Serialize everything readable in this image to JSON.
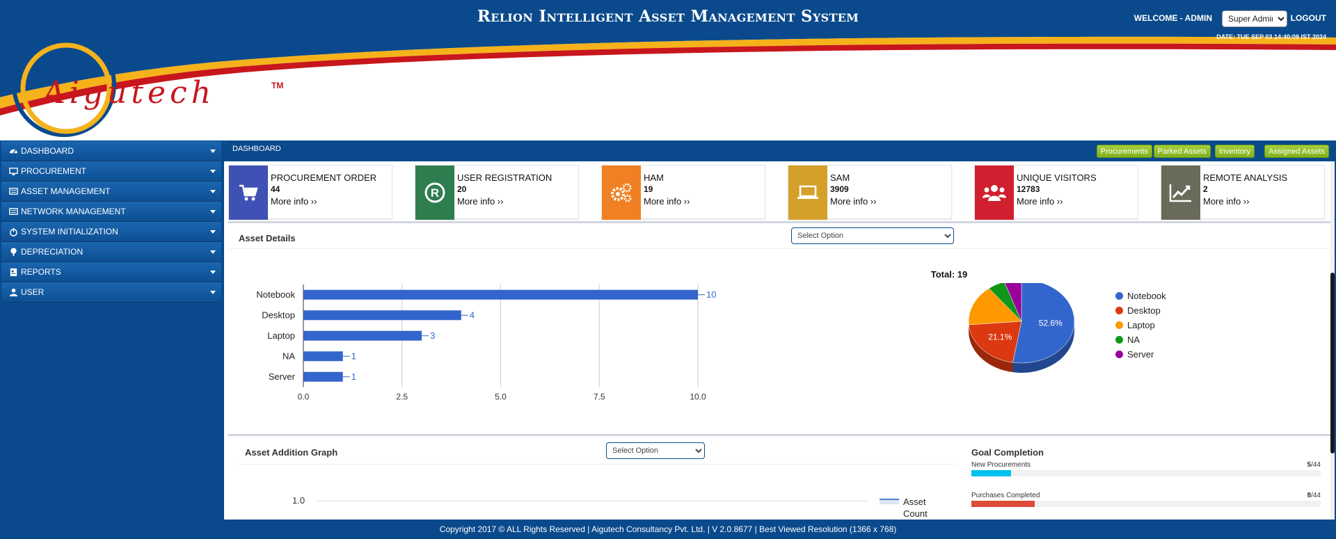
{
  "header": {
    "title": "Relion Intelligent Asset Management System",
    "welcome": "WELCOME - ADMIN",
    "role_selected": "Super Admin",
    "logout": "LOGOUT",
    "date": "DATE: TUE SEP 03 14:40:09 IST 2024",
    "logo_text": "Aigutech",
    "logo_tm": "TM"
  },
  "sidebar": {
    "items": [
      {
        "label": "DASHBOARD",
        "icon": "dashboard-icon"
      },
      {
        "label": "PROCUREMENT",
        "icon": "monitor-icon"
      },
      {
        "label": "ASSET MANAGEMENT",
        "icon": "server-icon"
      },
      {
        "label": "NETWORK MANAGEMENT",
        "icon": "network-icon"
      },
      {
        "label": "SYSTEM INITIALIZATION",
        "icon": "power-icon"
      },
      {
        "label": "DEPRECIATION",
        "icon": "tree-icon"
      },
      {
        "label": "REPORTS",
        "icon": "report-icon"
      },
      {
        "label": "USER",
        "icon": "user-icon"
      }
    ]
  },
  "main": {
    "breadcrumb": "DASHBOARD",
    "quick_links": [
      "Procurements",
      "Parked Assets",
      "Inventory",
      "Assigned Assets"
    ],
    "info_boxes": [
      {
        "label": "PROCUREMENT ORDER",
        "value": "44",
        "more": "More info ››",
        "color": "#3f51b5",
        "icon": "cart-icon"
      },
      {
        "label": "USER REGISTRATION",
        "value": "20",
        "more": "More info ››",
        "color": "#2e7d4f",
        "icon": "registered-icon"
      },
      {
        "label": "HAM",
        "value": "19",
        "more": "More info ››",
        "color": "#f08023",
        "icon": "gears-icon"
      },
      {
        "label": "SAM",
        "value": "3909",
        "more": "More info ››",
        "color": "#d4a02a",
        "icon": "laptop-icon"
      },
      {
        "label": "UNIQUE VISITORS",
        "value": "12783",
        "more": "More info ››",
        "color": "#d01f2e",
        "icon": "users-icon"
      },
      {
        "label": "REMOTE ANALYSIS",
        "value": "2",
        "more": "More info ››",
        "color": "#6a6a5a",
        "icon": "line-chart-icon"
      }
    ],
    "asset_details": {
      "title": "Asset Details",
      "select_placeholder": "Select Option",
      "pie_total": "Total: 19"
    },
    "asset_addition": {
      "title": "Asset Addition Graph",
      "select_placeholder": "Select Option",
      "y_tick": "1.0",
      "legend": "Asset Count"
    },
    "goal_completion": {
      "title": "Goal Completion",
      "items": [
        {
          "label": "New Procurements",
          "done": "5",
          "total": "/44",
          "fraction": 0.1136,
          "color": "#00c0ef"
        },
        {
          "label": "Purchases Completed",
          "done": "8",
          "total": "/44",
          "fraction": 0.1818,
          "color": "#dd4b39"
        }
      ]
    }
  },
  "chart_data": [
    {
      "type": "bar",
      "orientation": "horizontal",
      "categories": [
        "Notebook",
        "Desktop",
        "Laptop",
        "NA",
        "Server"
      ],
      "values": [
        10,
        4,
        3,
        1,
        1
      ],
      "xlim": [
        0,
        10
      ],
      "x_ticks": [
        "0.0",
        "2.5",
        "5.0",
        "7.5",
        "10.0"
      ],
      "grid": true,
      "color": "#3366cc"
    },
    {
      "type": "pie",
      "title": "Total: 19",
      "labels": [
        "Notebook",
        "Desktop",
        "Laptop",
        "NA",
        "Server"
      ],
      "values": [
        10,
        4,
        3,
        1,
        1
      ],
      "slice_labels": [
        "52.6%",
        "21.1%",
        "",
        "",
        ""
      ],
      "colors": [
        "#3366cc",
        "#dc3912",
        "#ff9900",
        "#109618",
        "#990099"
      ],
      "legend": "right"
    }
  ],
  "footer": {
    "text": "Copyright 2017 © ALL Rights Reserved | Aigutech Consultancy Pvt. Ltd. | V 2.0.8677 | Best Viewed Resolution (1366 x 768)"
  }
}
